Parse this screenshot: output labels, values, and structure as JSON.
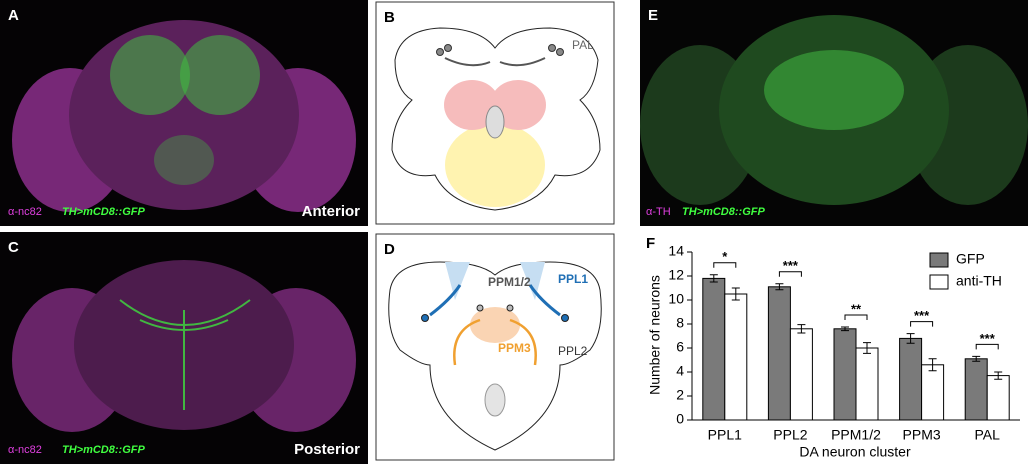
{
  "panels": {
    "A": {
      "label": "A",
      "stain": "α-nc82",
      "reporter": "TH>mCD8::GFP",
      "orientation": "Anterior"
    },
    "B": {
      "label": "B",
      "cluster": "PAL"
    },
    "C": {
      "label": "C",
      "stain": "α-nc82",
      "reporter": "TH>mCD8::GFP",
      "orientation": "Posterior"
    },
    "D": {
      "label": "D",
      "clusters": [
        "PPM1/2",
        "PPL1",
        "PPM3",
        "PPL2"
      ]
    },
    "E": {
      "label": "E",
      "stain": "α-TH",
      "reporter": "TH>mCD8::GFP"
    }
  },
  "chart_data": {
    "type": "bar",
    "panel_label": "F",
    "y_label": "Number of neurons",
    "x_label": "DA neuron cluster",
    "categories": [
      "PPL1",
      "PPL2",
      "PPM1/2",
      "PPM3",
      "PAL"
    ],
    "series": [
      {
        "name": "GFP",
        "color": "#7a7a7a",
        "values": [
          11.8,
          11.1,
          7.6,
          6.8,
          5.1
        ],
        "errors": [
          0.3,
          0.25,
          0.15,
          0.4,
          0.2
        ]
      },
      {
        "name": "anti-TH",
        "color": "#ffffff",
        "values": [
          10.5,
          7.6,
          6.0,
          4.6,
          3.7
        ],
        "errors": [
          0.5,
          0.35,
          0.45,
          0.5,
          0.3
        ]
      }
    ],
    "significance": [
      "*",
      "***",
      "**",
      "***",
      "***"
    ],
    "ylim": [
      0,
      14
    ],
    "yticks": [
      0,
      2,
      4,
      6,
      8,
      10,
      12,
      14
    ],
    "legend": "upper right"
  }
}
